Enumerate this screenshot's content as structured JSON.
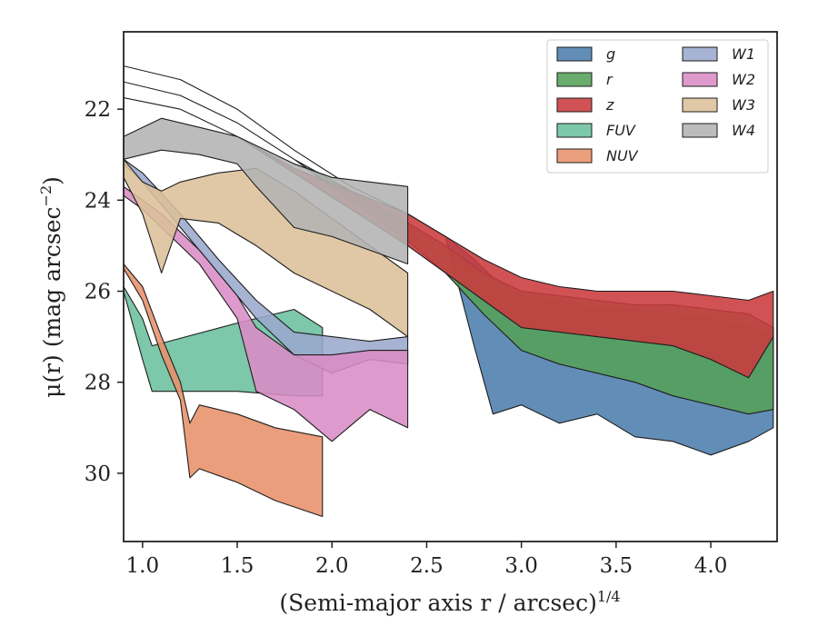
{
  "chart_data": {
    "type": "area",
    "xlabel": "(Semi-major axis r / arcsec)",
    "xlabel_exponent": "1/4",
    "ylabel": "μ(r) (mag arcsec",
    "ylabel_exponent": "−2",
    "ylabel_close": ")",
    "xlim": [
      0.9,
      4.35
    ],
    "ylim": [
      31.5,
      20.3
    ],
    "y_inverted": true,
    "xticks": [
      1.0,
      1.5,
      2.0,
      2.5,
      3.0,
      3.5,
      4.0
    ],
    "xtick_labels": [
      "1.0",
      "1.5",
      "2.0",
      "2.5",
      "3.0",
      "3.5",
      "4.0"
    ],
    "yticks": [
      22,
      24,
      26,
      28,
      30
    ],
    "ytick_labels": [
      "22",
      "24",
      "26",
      "28",
      "30"
    ],
    "grid": false,
    "legend": {
      "placement": "top-right",
      "columns": 2
    },
    "series": [
      {
        "name": "g",
        "color": "#4c7dac",
        "x": [
          0.9,
          1.2,
          1.5,
          1.8,
          2.1,
          2.4,
          2.6,
          2.75,
          2.85,
          3.0,
          3.2,
          3.4,
          3.6,
          3.8,
          4.0,
          4.2,
          4.33
        ],
        "bright": [
          21.05,
          21.35,
          22.0,
          22.9,
          23.7,
          24.3,
          24.8,
          25.3,
          25.7,
          26.1,
          26.2,
          26.4,
          26.4,
          26.5,
          26.6,
          26.8,
          27.0
        ],
        "faint": [
          21.05,
          21.35,
          22.0,
          22.9,
          23.7,
          24.3,
          24.8,
          27.2,
          28.7,
          28.5,
          28.9,
          28.7,
          29.2,
          29.3,
          29.6,
          29.3,
          29.0
        ]
      },
      {
        "name": "r",
        "color": "#55a05a",
        "x": [
          0.9,
          1.2,
          1.5,
          1.8,
          2.1,
          2.4,
          2.6,
          2.8,
          3.0,
          3.2,
          3.4,
          3.6,
          3.8,
          4.0,
          4.2,
          4.33
        ],
        "bright": [
          21.4,
          21.7,
          22.3,
          23.1,
          23.8,
          24.5,
          25.0,
          25.6,
          26.0,
          26.1,
          26.2,
          26.3,
          26.3,
          26.4,
          26.5,
          26.8
        ],
        "faint": [
          21.4,
          21.7,
          22.3,
          23.1,
          24.0,
          24.9,
          25.6,
          26.5,
          27.3,
          27.6,
          27.8,
          28.0,
          28.3,
          28.5,
          28.7,
          28.6
        ]
      },
      {
        "name": "z",
        "color": "#c93a3e",
        "x": [
          0.9,
          1.2,
          1.5,
          1.8,
          2.1,
          2.4,
          2.6,
          2.8,
          3.0,
          3.2,
          3.4,
          3.6,
          3.8,
          4.0,
          4.2,
          4.33
        ],
        "bright": [
          21.75,
          22.0,
          22.6,
          23.3,
          23.8,
          24.3,
          24.8,
          25.3,
          25.7,
          25.9,
          26.0,
          26.0,
          26.0,
          26.1,
          26.2,
          26.0
        ],
        "faint": [
          21.75,
          22.0,
          22.6,
          23.4,
          24.2,
          25.0,
          25.6,
          26.2,
          26.8,
          26.9,
          27.0,
          27.1,
          27.2,
          27.5,
          27.9,
          27.0
        ]
      },
      {
        "name": "FUV",
        "color": "#6bbf9e",
        "x": [
          0.9,
          1.0,
          1.05,
          1.5,
          1.8,
          1.95
        ],
        "bright": [
          25.9,
          26.6,
          27.2,
          26.7,
          26.4,
          26.8
        ],
        "faint": [
          26.0,
          27.5,
          28.2,
          28.2,
          28.3,
          28.3
        ]
      },
      {
        "name": "NUV",
        "color": "#e8916a",
        "x": [
          0.9,
          1.0,
          1.1,
          1.2,
          1.25,
          1.3,
          1.5,
          1.7,
          1.95
        ],
        "bright": [
          25.4,
          25.9,
          27.0,
          28.0,
          28.9,
          28.5,
          28.7,
          29.0,
          29.2
        ],
        "faint": [
          25.5,
          26.2,
          27.4,
          28.4,
          30.1,
          29.9,
          30.2,
          30.6,
          30.95
        ]
      },
      {
        "name": "W1",
        "color": "#9aa8cc",
        "x": [
          0.9,
          1.0,
          1.2,
          1.4,
          1.6,
          1.8,
          2.0,
          2.2,
          2.4
        ],
        "bright": [
          23.1,
          23.4,
          24.3,
          25.3,
          26.2,
          26.9,
          27.0,
          27.1,
          27.0
        ],
        "faint": [
          23.2,
          23.6,
          24.6,
          25.6,
          26.6,
          27.4,
          27.8,
          27.5,
          27.6
        ]
      },
      {
        "name": "W2",
        "color": "#d98cc6",
        "x": [
          0.9,
          1.0,
          1.1,
          1.3,
          1.5,
          1.6,
          1.8,
          2.0,
          2.2,
          2.4
        ],
        "bright": [
          23.7,
          24.0,
          24.3,
          25.1,
          26.1,
          26.8,
          27.4,
          27.4,
          27.3,
          27.3
        ],
        "faint": [
          23.9,
          24.2,
          24.6,
          25.4,
          26.6,
          28.2,
          28.6,
          29.3,
          28.6,
          29.0
        ]
      },
      {
        "name": "W3",
        "color": "#dcc09a",
        "x": [
          0.9,
          1.0,
          1.1,
          1.2,
          1.4,
          1.6,
          1.8,
          2.0,
          2.2,
          2.4
        ],
        "bright": [
          23.1,
          23.6,
          23.8,
          23.6,
          23.4,
          23.3,
          23.8,
          24.4,
          25.0,
          25.6
        ],
        "faint": [
          23.5,
          24.3,
          25.6,
          24.4,
          24.5,
          25.0,
          25.6,
          26.0,
          26.4,
          27.0
        ]
      },
      {
        "name": "W4",
        "color": "#b3b3b3",
        "x": [
          0.9,
          1.0,
          1.1,
          1.3,
          1.5,
          1.6,
          1.8,
          2.0,
          2.2,
          2.4
        ],
        "bright": [
          22.6,
          22.4,
          22.2,
          22.4,
          22.6,
          22.8,
          23.2,
          23.5,
          23.6,
          23.7
        ],
        "faint": [
          23.1,
          23.0,
          22.9,
          23.0,
          23.2,
          23.7,
          24.6,
          24.8,
          25.1,
          25.4
        ]
      }
    ]
  }
}
